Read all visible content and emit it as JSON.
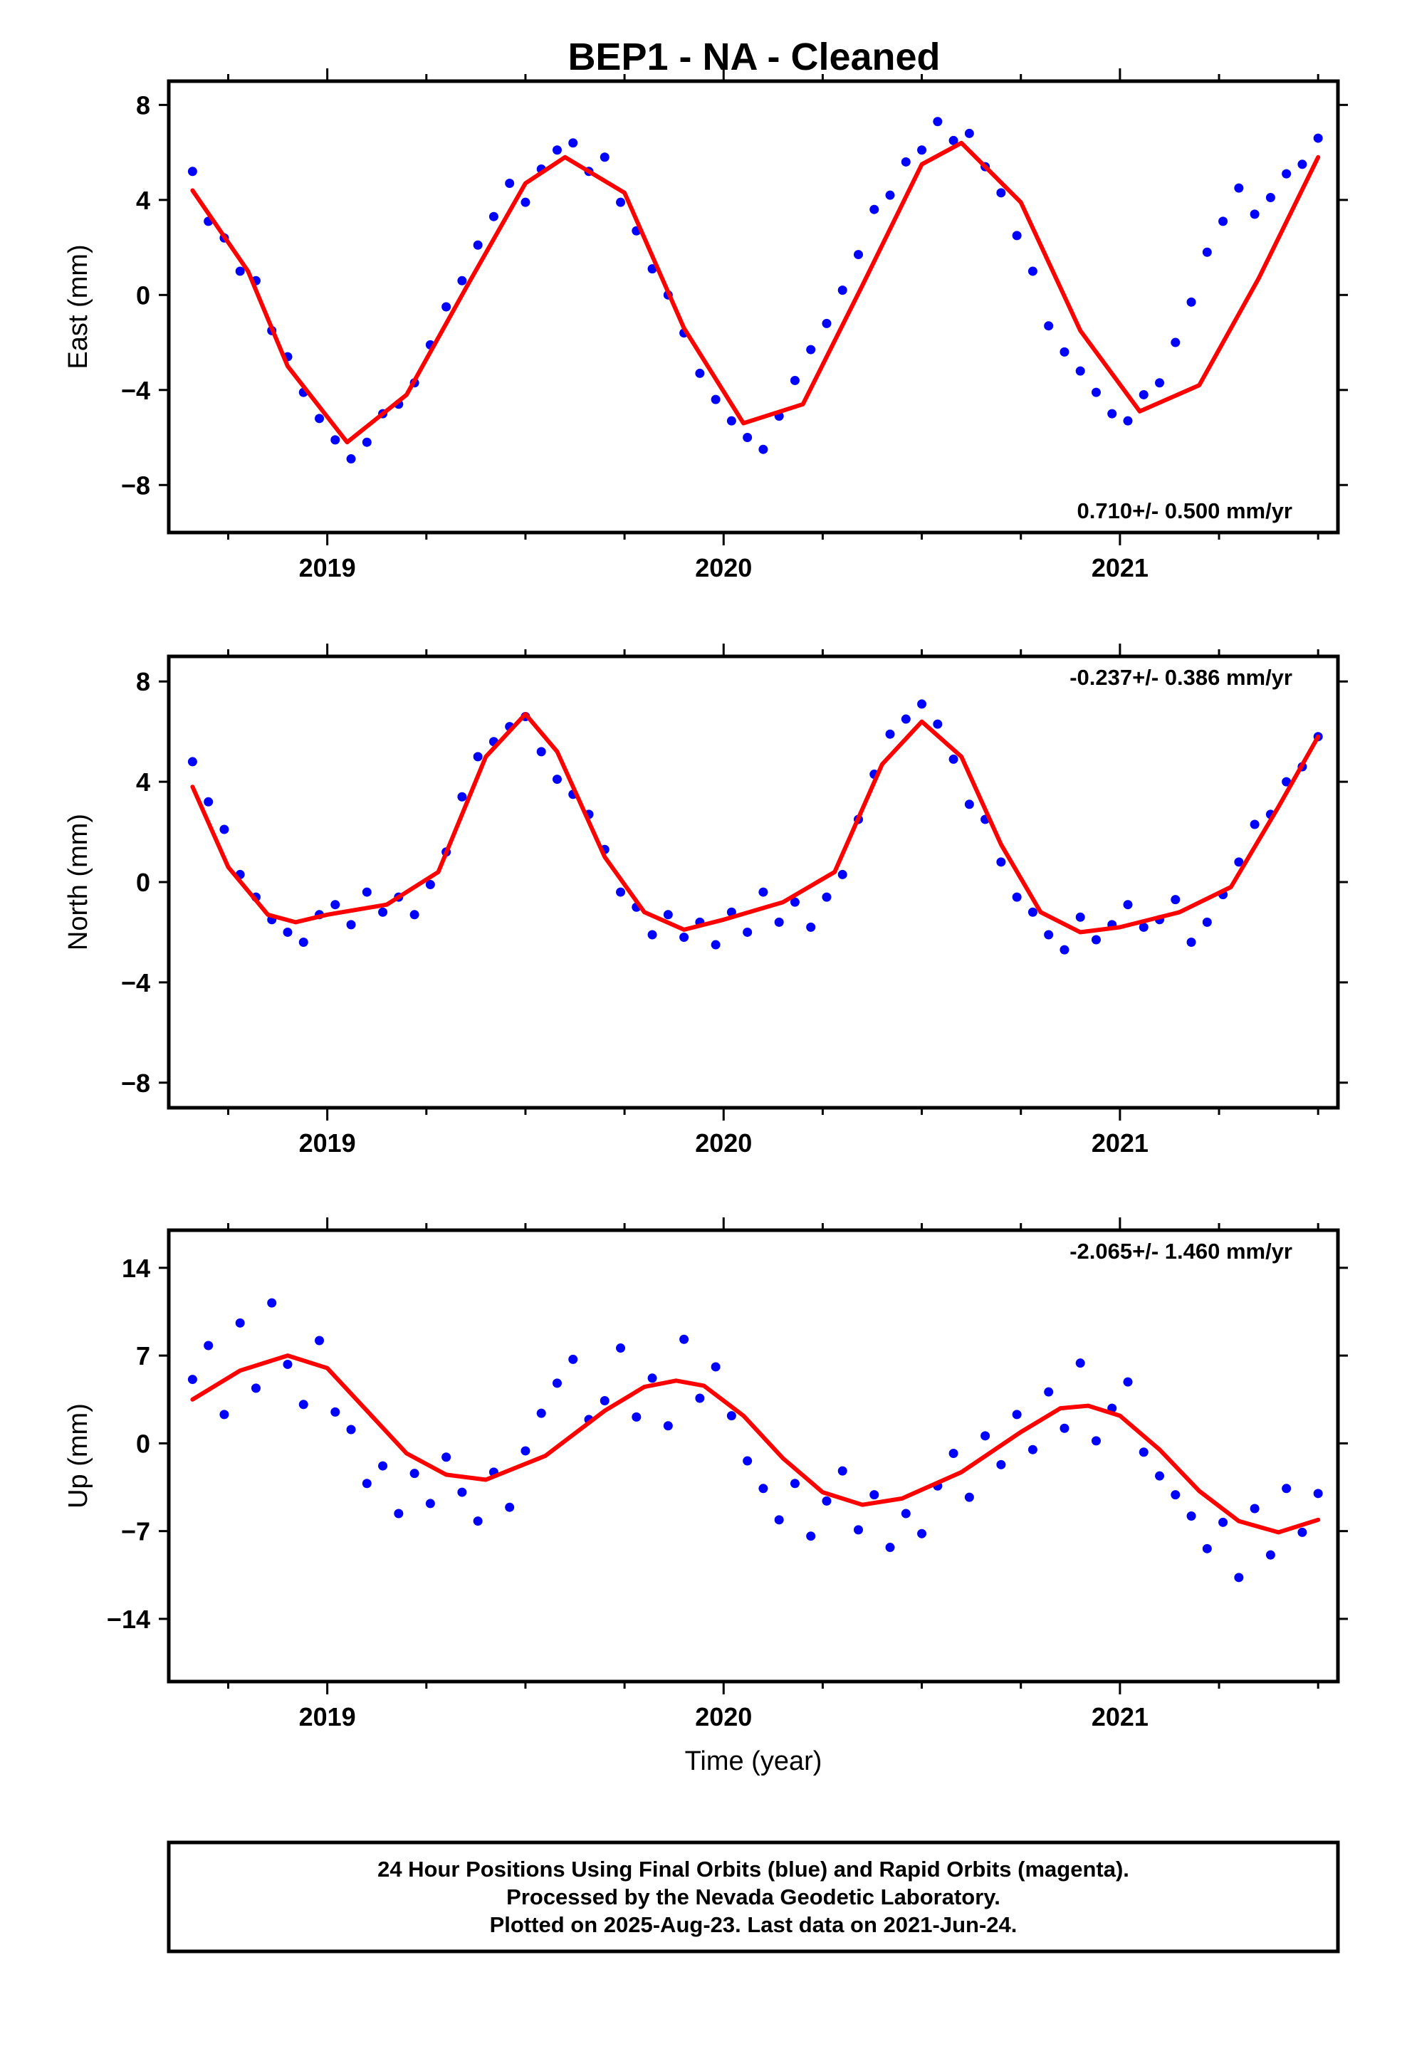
{
  "chart_data": [
    {
      "type": "scatter",
      "title": "BEP1  - NA - Cleaned",
      "ylabel": "East (mm)",
      "xlabel": "",
      "xlim": [
        2018.6,
        2021.55
      ],
      "ylim": [
        -10,
        9
      ],
      "yticks": [
        "8",
        "4",
        "0",
        "−4",
        "−8"
      ],
      "ytick_values": [
        8,
        4,
        0,
        -4,
        -8
      ],
      "xticks": [
        "2019",
        "2020",
        "2021"
      ],
      "xtick_values": [
        2019,
        2020,
        2021
      ],
      "rate": "0.710+/- 0.500 mm/yr",
      "rate_position": "bottom-right",
      "series": [
        {
          "name": "Final Orbits",
          "marker": "dot",
          "color": "#0000ff",
          "x": [
            2018.66,
            2018.7,
            2018.74,
            2018.78,
            2018.82,
            2018.86,
            2018.9,
            2018.94,
            2018.98,
            2019.02,
            2019.06,
            2019.1,
            2019.14,
            2019.18,
            2019.22,
            2019.26,
            2019.3,
            2019.34,
            2019.38,
            2019.42,
            2019.46,
            2019.5,
            2019.54,
            2019.58,
            2019.62,
            2019.66,
            2019.7,
            2019.74,
            2019.78,
            2019.82,
            2019.86,
            2019.9,
            2019.94,
            2019.98,
            2020.02,
            2020.06,
            2020.1,
            2020.14,
            2020.18,
            2020.22,
            2020.26,
            2020.3,
            2020.34,
            2020.38,
            2020.42,
            2020.46,
            2020.5,
            2020.54,
            2020.58,
            2020.62,
            2020.66,
            2020.7,
            2020.74,
            2020.78,
            2020.82,
            2020.86,
            2020.9,
            2020.94,
            2020.98,
            2021.02,
            2021.06,
            2021.1,
            2021.14,
            2021.18,
            2021.22,
            2021.26,
            2021.3,
            2021.34,
            2021.38,
            2021.42,
            2021.46,
            2021.5
          ],
          "y": [
            5.2,
            3.1,
            2.4,
            1.0,
            0.6,
            -1.5,
            -2.6,
            -4.1,
            -5.2,
            -6.1,
            -6.9,
            -6.2,
            -5.0,
            -4.6,
            -3.7,
            -2.1,
            -0.5,
            0.6,
            2.1,
            3.3,
            4.7,
            3.9,
            5.3,
            6.1,
            6.4,
            5.2,
            5.8,
            3.9,
            2.7,
            1.1,
            0.0,
            -1.6,
            -3.3,
            -4.4,
            -5.3,
            -6.0,
            -6.5,
            -5.1,
            -3.6,
            -2.3,
            -1.2,
            0.2,
            1.7,
            3.6,
            4.2,
            5.6,
            6.1,
            7.3,
            6.5,
            6.8,
            5.4,
            4.3,
            2.5,
            1.0,
            -1.3,
            -2.4,
            -3.2,
            -4.1,
            -5.0,
            -5.3,
            -4.2,
            -3.7,
            -2.0,
            -0.3,
            1.8,
            3.1,
            4.5,
            3.4,
            4.1,
            5.1,
            5.5,
            6.6
          ]
        }
      ],
      "model": {
        "name": "model fit",
        "color": "#ff0000",
        "x": [
          2018.66,
          2018.8,
          2018.9,
          2019.05,
          2019.2,
          2019.35,
          2019.5,
          2019.6,
          2019.75,
          2019.9,
          2020.05,
          2020.2,
          2020.35,
          2020.5,
          2020.6,
          2020.75,
          2020.9,
          2021.05,
          2021.2,
          2021.35,
          2021.5
        ],
        "y": [
          4.4,
          1.0,
          -3.0,
          -6.2,
          -4.2,
          0.3,
          4.7,
          5.8,
          4.3,
          -1.4,
          -5.4,
          -4.6,
          0.4,
          5.5,
          6.4,
          3.9,
          -1.5,
          -4.9,
          -3.8,
          0.7,
          5.8
        ]
      }
    },
    {
      "type": "scatter",
      "ylabel": "North (mm)",
      "xlabel": "",
      "xlim": [
        2018.6,
        2021.55
      ],
      "ylim": [
        -9,
        9
      ],
      "yticks": [
        "8",
        "4",
        "0",
        "−4",
        "−8"
      ],
      "ytick_values": [
        8,
        4,
        0,
        -4,
        -8
      ],
      "xticks": [
        "2019",
        "2020",
        "2021"
      ],
      "xtick_values": [
        2019,
        2020,
        2021
      ],
      "rate": "-0.237+/- 0.386 mm/yr",
      "rate_position": "top-right",
      "series": [
        {
          "name": "Final Orbits",
          "marker": "dot",
          "color": "#0000ff",
          "x": [
            2018.66,
            2018.7,
            2018.74,
            2018.78,
            2018.82,
            2018.86,
            2018.9,
            2018.94,
            2018.98,
            2019.02,
            2019.06,
            2019.1,
            2019.14,
            2019.18,
            2019.22,
            2019.26,
            2019.3,
            2019.34,
            2019.38,
            2019.42,
            2019.46,
            2019.5,
            2019.54,
            2019.58,
            2019.62,
            2019.66,
            2019.7,
            2019.74,
            2019.78,
            2019.82,
            2019.86,
            2019.9,
            2019.94,
            2019.98,
            2020.02,
            2020.06,
            2020.1,
            2020.14,
            2020.18,
            2020.22,
            2020.26,
            2020.3,
            2020.34,
            2020.38,
            2020.42,
            2020.46,
            2020.5,
            2020.54,
            2020.58,
            2020.62,
            2020.66,
            2020.7,
            2020.74,
            2020.78,
            2020.82,
            2020.86,
            2020.9,
            2020.94,
            2020.98,
            2021.02,
            2021.06,
            2021.1,
            2021.14,
            2021.18,
            2021.22,
            2021.26,
            2021.3,
            2021.34,
            2021.38,
            2021.42,
            2021.46,
            2021.5
          ],
          "y": [
            4.8,
            3.2,
            2.1,
            0.3,
            -0.6,
            -1.5,
            -2.0,
            -2.4,
            -1.3,
            -0.9,
            -1.7,
            -0.4,
            -1.2,
            -0.6,
            -1.3,
            -0.1,
            1.2,
            3.4,
            5.0,
            5.6,
            6.2,
            6.6,
            5.2,
            4.1,
            3.5,
            2.7,
            1.3,
            -0.4,
            -1.0,
            -2.1,
            -1.3,
            -2.2,
            -1.6,
            -2.5,
            -1.2,
            -2.0,
            -0.4,
            -1.6,
            -0.8,
            -1.8,
            -0.6,
            0.3,
            2.5,
            4.3,
            5.9,
            6.5,
            7.1,
            6.3,
            4.9,
            3.1,
            2.5,
            0.8,
            -0.6,
            -1.2,
            -2.1,
            -2.7,
            -1.4,
            -2.3,
            -1.7,
            -0.9,
            -1.8,
            -1.5,
            -0.7,
            -2.4,
            -1.6,
            -0.5,
            0.8,
            2.3,
            2.7,
            4.0,
            4.6,
            5.8
          ]
        }
      ],
      "model": {
        "name": "model fit",
        "color": "#ff0000",
        "x": [
          2018.66,
          2018.75,
          2018.85,
          2018.92,
          2019.0,
          2019.15,
          2019.28,
          2019.4,
          2019.5,
          2019.58,
          2019.7,
          2019.8,
          2019.9,
          2020.0,
          2020.15,
          2020.28,
          2020.4,
          2020.5,
          2020.6,
          2020.7,
          2020.8,
          2020.9,
          2021.0,
          2021.15,
          2021.28,
          2021.4,
          2021.5
        ],
        "y": [
          3.8,
          0.6,
          -1.3,
          -1.6,
          -1.3,
          -0.9,
          0.4,
          5.0,
          6.7,
          5.2,
          1.0,
          -1.2,
          -1.9,
          -1.5,
          -0.8,
          0.4,
          4.7,
          6.4,
          5.0,
          1.5,
          -1.2,
          -2.0,
          -1.8,
          -1.2,
          -0.2,
          3.0,
          5.8
        ]
      }
    },
    {
      "type": "scatter",
      "ylabel": "Up (mm)",
      "xlabel": "Time (year)",
      "xlim": [
        2018.6,
        2021.55
      ],
      "ylim": [
        -19,
        17
      ],
      "yticks": [
        "14",
        "7",
        "0",
        "−7",
        "−14"
      ],
      "ytick_values": [
        14,
        7,
        0,
        -7,
        -14
      ],
      "xticks": [
        "2019",
        "2020",
        "2021"
      ],
      "xtick_values": [
        2019,
        2020,
        2021
      ],
      "rate": "-2.065+/- 1.460 mm/yr",
      "rate_position": "top-right",
      "series": [
        {
          "name": "Final Orbits",
          "marker": "dot",
          "color": "#0000ff",
          "x": [
            2018.66,
            2018.7,
            2018.74,
            2018.78,
            2018.82,
            2018.86,
            2018.9,
            2018.94,
            2018.98,
            2019.02,
            2019.06,
            2019.1,
            2019.14,
            2019.18,
            2019.22,
            2019.26,
            2019.3,
            2019.34,
            2019.38,
            2019.42,
            2019.46,
            2019.5,
            2019.54,
            2019.58,
            2019.62,
            2019.66,
            2019.7,
            2019.74,
            2019.78,
            2019.82,
            2019.86,
            2019.9,
            2019.94,
            2019.98,
            2020.02,
            2020.06,
            2020.1,
            2020.14,
            2020.18,
            2020.22,
            2020.26,
            2020.3,
            2020.34,
            2020.38,
            2020.42,
            2020.46,
            2020.5,
            2020.54,
            2020.58,
            2020.62,
            2020.66,
            2020.7,
            2020.74,
            2020.78,
            2020.82,
            2020.86,
            2020.9,
            2020.94,
            2020.98,
            2021.02,
            2021.06,
            2021.1,
            2021.14,
            2021.18,
            2021.22,
            2021.26,
            2021.3,
            2021.34,
            2021.38,
            2021.42,
            2021.46,
            2021.5
          ],
          "y": [
            5.1,
            7.8,
            2.3,
            9.6,
            4.4,
            11.2,
            6.3,
            3.1,
            8.2,
            2.5,
            1.1,
            -3.2,
            -1.8,
            -5.6,
            -2.4,
            -4.8,
            -1.1,
            -3.9,
            -6.2,
            -2.3,
            -5.1,
            -0.6,
            2.4,
            4.8,
            6.7,
            1.9,
            3.4,
            7.6,
            2.1,
            5.2,
            1.4,
            8.3,
            3.6,
            6.1,
            2.2,
            -1.4,
            -3.6,
            -6.1,
            -3.2,
            -7.4,
            -4.6,
            -2.2,
            -6.9,
            -4.1,
            -8.3,
            -5.6,
            -7.2,
            -3.4,
            -0.8,
            -4.3,
            0.6,
            -1.7,
            2.3,
            -0.5,
            4.1,
            1.2,
            6.4,
            0.2,
            2.8,
            4.9,
            -0.7,
            -2.6,
            -4.1,
            -5.8,
            -8.4,
            -6.3,
            -10.7,
            -5.2,
            -8.9,
            -3.6,
            -7.1,
            -4.0
          ]
        }
      ],
      "model": {
        "name": "model fit",
        "color": "#ff0000",
        "x": [
          2018.66,
          2018.78,
          2018.9,
          2019.0,
          2019.1,
          2019.2,
          2019.3,
          2019.4,
          2019.55,
          2019.7,
          2019.8,
          2019.88,
          2019.95,
          2020.05,
          2020.15,
          2020.25,
          2020.35,
          2020.45,
          2020.6,
          2020.75,
          2020.85,
          2020.92,
          2021.0,
          2021.1,
          2021.2,
          2021.3,
          2021.4,
          2021.5
        ],
        "y": [
          3.5,
          5.8,
          7.0,
          6.0,
          2.6,
          -0.8,
          -2.5,
          -2.9,
          -1.0,
          2.6,
          4.5,
          5.0,
          4.6,
          2.2,
          -1.2,
          -3.9,
          -4.9,
          -4.4,
          -2.3,
          0.9,
          2.8,
          3.0,
          2.2,
          -0.5,
          -3.8,
          -6.2,
          -7.1,
          -6.1
        ]
      }
    }
  ],
  "footer": {
    "line1": "24 Hour Positions Using Final Orbits (blue) and Rapid Orbits (magenta).",
    "line2": "Processed by the Nevada Geodetic Laboratory.",
    "line3": "Plotted on 2025-Aug-23. Last data on 2021-Jun-24."
  }
}
